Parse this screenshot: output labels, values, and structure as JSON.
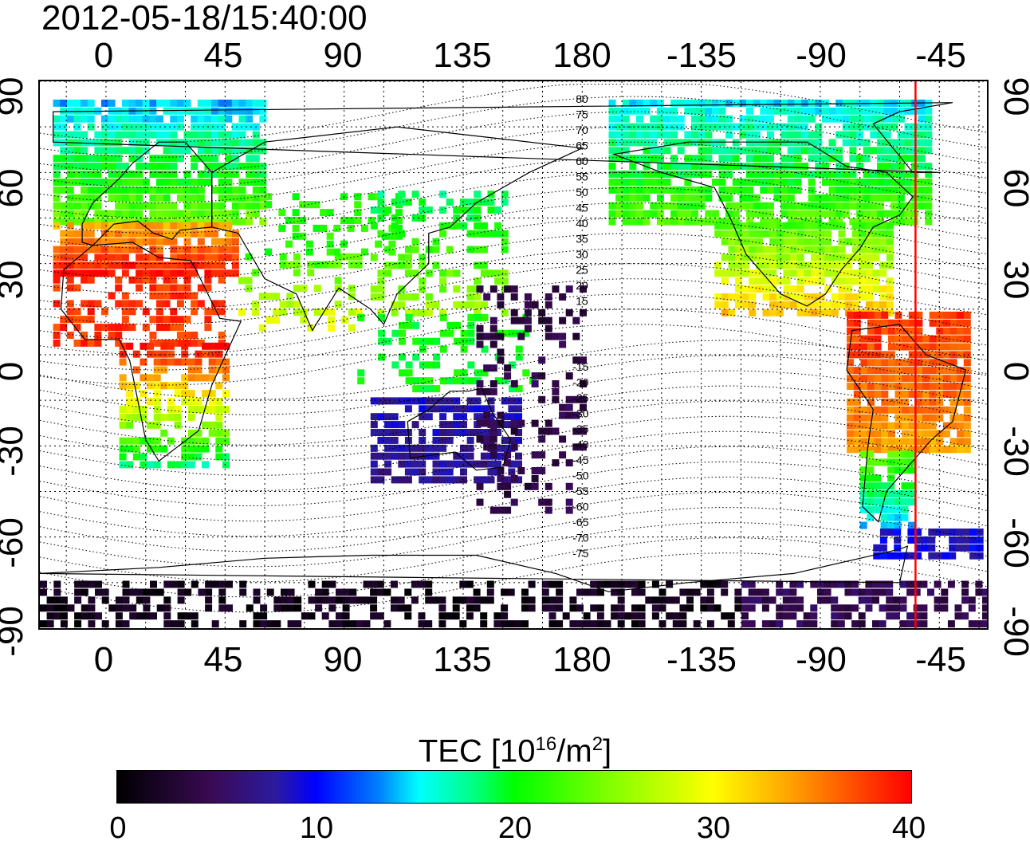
{
  "title": "2012-05-18/15:40:00",
  "lon_ticks": [
    "0",
    "45",
    "90",
    "135",
    "180",
    "-135",
    "-90",
    "-45"
  ],
  "lat_ticks": [
    "90",
    "60",
    "30",
    "0",
    "-30",
    "-60",
    "-90"
  ],
  "contour_labels_north": [
    "80",
    "75",
    "70",
    "65",
    "60",
    "55",
    "50",
    "45",
    "40",
    "35",
    "30",
    "25",
    "20",
    "15"
  ],
  "contour_labels_south": [
    "-15",
    "-20",
    "-25",
    "-30",
    "-35",
    "-40",
    "-45",
    "-50",
    "-55",
    "-60",
    "-65",
    "-70",
    "-75"
  ],
  "colorbar": {
    "label_main": "TEC  [10",
    "label_exp": "16",
    "label_unit": "/m",
    "label_exp2": "2",
    "label_end": "]",
    "ticks": [
      "0",
      "10",
      "20",
      "30",
      "40"
    ],
    "min": 0,
    "max": 40
  },
  "map": {
    "lon_range": [
      -25,
      333
    ],
    "lat_range": [
      -90,
      90
    ],
    "terminator_longitude": -54,
    "terminator_color": "#ff0000",
    "projection": "equirectangular"
  }
}
